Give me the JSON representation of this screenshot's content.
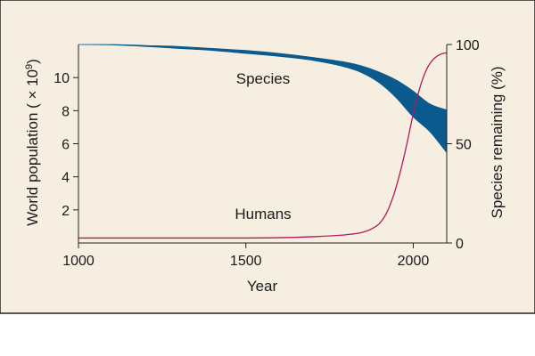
{
  "chart_data": {
    "type": "line",
    "title": "",
    "xlabel": "Year",
    "ylabel_left": "World population ( × 10",
    "ylabel_left_exponent": "9",
    "ylabel_left_suffix": ")",
    "ylabel_right": "Species remaining (%)",
    "xlim": [
      1000,
      2100
    ],
    "ylim_left": [
      0,
      12
    ],
    "ylim_right": [
      0,
      100
    ],
    "x_ticks": [
      1000,
      1500,
      2000
    ],
    "y_left_ticks": [
      2,
      4,
      6,
      8,
      10
    ],
    "y_right_ticks": [
      0,
      50,
      100
    ],
    "grid": false,
    "legend": "none",
    "colors": {
      "background": "#f6efe1",
      "species": "#0a5a8e",
      "humans": "#b0195a",
      "axis": "#222222"
    },
    "series": [
      {
        "name": "Species",
        "axis": "right",
        "kind": "band",
        "x": [
          1000,
          1100,
          1200,
          1300,
          1400,
          1500,
          1600,
          1700,
          1800,
          1850,
          1900,
          1950,
          2000,
          2050,
          2100
        ],
        "upper": [
          100,
          100,
          99.5,
          99,
          98,
          97,
          95.5,
          93.5,
          91,
          89,
          86,
          82,
          76.5,
          70,
          67
        ],
        "lower": [
          100,
          99.8,
          99,
          98,
          97,
          95.5,
          94,
          92,
          88.5,
          85.5,
          80.5,
          73,
          63.5,
          56,
          45.5
        ],
        "label": "Species"
      },
      {
        "name": "Humans",
        "axis": "left",
        "kind": "line",
        "x": [
          1000,
          1200,
          1400,
          1600,
          1700,
          1800,
          1850,
          1880,
          1900,
          1920,
          1940,
          1960,
          1980,
          2000,
          2020,
          2040,
          2060,
          2080,
          2100
        ],
        "values": [
          0.3,
          0.3,
          0.3,
          0.32,
          0.38,
          0.5,
          0.65,
          0.9,
          1.2,
          1.8,
          2.8,
          4.2,
          5.9,
          7.8,
          9.4,
          10.5,
          11.1,
          11.4,
          11.5
        ],
        "label": "Humans"
      }
    ]
  }
}
